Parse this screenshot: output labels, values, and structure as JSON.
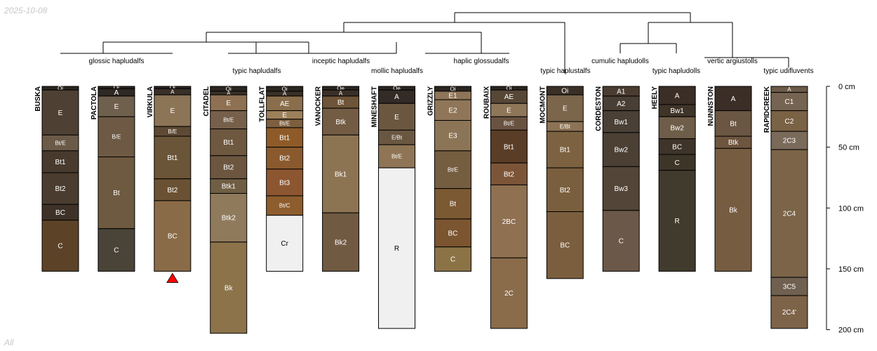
{
  "header": {
    "date": "2025-10-08"
  },
  "footer": {
    "label": "All"
  },
  "depth_axis": {
    "unit": "cm",
    "max_depth": 200,
    "ticks": [
      {
        "value": 0,
        "label": "0 cm"
      },
      {
        "value": 50,
        "label": "50 cm"
      },
      {
        "value": 100,
        "label": "100 cm"
      },
      {
        "value": 150,
        "label": "150 cm"
      },
      {
        "value": 200,
        "label": "200 cm"
      }
    ]
  },
  "taxa_labels": [
    "glossic hapludalfs",
    "typic hapludalfs",
    "inceptic hapludalfs",
    "mollic hapludalfs",
    "haplic glossudalfs",
    "typic haplustalfs",
    "cumulic hapludolls",
    "typic hapludolls",
    "vertic argiustolls",
    "typic udifluvents"
  ],
  "profiles": [
    {
      "name": "BUSKA",
      "horizons": [
        {
          "name": "Oi",
          "top": 0,
          "bottom": 3,
          "color": "#2b2520"
        },
        {
          "name": "E",
          "top": 3,
          "bottom": 40,
          "color": "#4e4133"
        },
        {
          "name": "Bt/E",
          "top": 40,
          "bottom": 53,
          "color": "#6b5a48"
        },
        {
          "name": "Bt1",
          "top": 53,
          "bottom": 71,
          "color": "#483a2d"
        },
        {
          "name": "Bt2",
          "top": 71,
          "bottom": 97,
          "color": "#4a3d2f"
        },
        {
          "name": "BC",
          "top": 97,
          "bottom": 110,
          "color": "#3e3228"
        },
        {
          "name": "C",
          "top": 110,
          "bottom": 152,
          "color": "#5c4328"
        }
      ]
    },
    {
      "name": "PACTOLA",
      "horizons": [
        {
          "name": "Oi",
          "top": 0,
          "bottom": 2,
          "color": "#2b2520"
        },
        {
          "name": "A",
          "top": 2,
          "bottom": 8,
          "color": "#2f2823"
        },
        {
          "name": "E",
          "top": 8,
          "bottom": 25,
          "color": "#6f5f4d"
        },
        {
          "name": "B/E",
          "top": 25,
          "bottom": 58,
          "color": "#6e5a44"
        },
        {
          "name": "Bt",
          "top": 58,
          "bottom": 117,
          "color": "#6e5a40"
        },
        {
          "name": "C",
          "top": 117,
          "bottom": 152,
          "color": "#4a4338"
        }
      ]
    },
    {
      "name": "VIRKULA",
      "marker": "yes",
      "horizons": [
        {
          "name": "Oi",
          "top": 0,
          "bottom": 2,
          "color": "#2b2520"
        },
        {
          "name": "A",
          "top": 2,
          "bottom": 7,
          "color": "#3a3028"
        },
        {
          "name": "E",
          "top": 7,
          "bottom": 33,
          "color": "#8c7457"
        },
        {
          "name": "B/E",
          "top": 33,
          "bottom": 41,
          "color": "#5e4a34"
        },
        {
          "name": "Bt1",
          "top": 41,
          "bottom": 76,
          "color": "#6b5538"
        },
        {
          "name": "Bt2",
          "top": 76,
          "bottom": 94,
          "color": "#6a5133"
        },
        {
          "name": "BC",
          "top": 94,
          "bottom": 152,
          "color": "#8a6b47"
        }
      ]
    },
    {
      "name": "CITADEL",
      "horizons": [
        {
          "name": "Oi",
          "top": 0,
          "bottom": 4,
          "color": "#2b2520"
        },
        {
          "name": "A",
          "top": 4,
          "bottom": 7,
          "color": "#3a3028"
        },
        {
          "name": "E",
          "top": 7,
          "bottom": 20,
          "color": "#8e7152"
        },
        {
          "name": "Bt/E",
          "top": 20,
          "bottom": 35,
          "color": "#76604b"
        },
        {
          "name": "Bt1",
          "top": 35,
          "bottom": 57,
          "color": "#6e583f"
        },
        {
          "name": "Bt2",
          "top": 57,
          "bottom": 76,
          "color": "#6c5640"
        },
        {
          "name": "Btk1",
          "top": 76,
          "bottom": 88,
          "color": "#6f5e44"
        },
        {
          "name": "Btk2",
          "top": 88,
          "bottom": 128,
          "color": "#8f7a5c"
        },
        {
          "name": "Bk",
          "top": 128,
          "bottom": 203,
          "color": "#8c7349"
        }
      ]
    },
    {
      "name": "TOLLFLAT",
      "horizons": [
        {
          "name": "Oi",
          "top": 0,
          "bottom": 4,
          "color": "#2b2520"
        },
        {
          "name": "A",
          "top": 4,
          "bottom": 8,
          "color": "#3a3028"
        },
        {
          "name": "AE",
          "top": 8,
          "bottom": 20,
          "color": "#8a6e4c"
        },
        {
          "name": "E",
          "top": 20,
          "bottom": 27,
          "color": "#9e805a"
        },
        {
          "name": "Bt/E",
          "top": 27,
          "bottom": 34,
          "color": "#7d5f3f"
        },
        {
          "name": "Bt1",
          "top": 34,
          "bottom": 50,
          "color": "#8e5b28"
        },
        {
          "name": "Bt2",
          "top": 50,
          "bottom": 68,
          "color": "#8a5a2e"
        },
        {
          "name": "Bt3",
          "top": 68,
          "bottom": 90,
          "color": "#8c5631"
        },
        {
          "name": "Bt/C",
          "top": 90,
          "bottom": 106,
          "color": "#8e5d2e"
        },
        {
          "name": "Cr",
          "top": 106,
          "bottom": 152,
          "color": "#f0f0f0"
        }
      ]
    },
    {
      "name": "VANOCKER",
      "horizons": [
        {
          "name": "Oe",
          "top": 0,
          "bottom": 3,
          "color": "#2b2520"
        },
        {
          "name": "A",
          "top": 3,
          "bottom": 8,
          "color": "#3a3028"
        },
        {
          "name": "Bt",
          "top": 8,
          "bottom": 18,
          "color": "#6e5438"
        },
        {
          "name": "Btk",
          "top": 18,
          "bottom": 40,
          "color": "#735c44"
        },
        {
          "name": "Bk1",
          "top": 40,
          "bottom": 104,
          "color": "#8c7453"
        },
        {
          "name": "Bk2",
          "top": 104,
          "bottom": 152,
          "color": "#705a42"
        }
      ]
    },
    {
      "name": "MINESHAFT",
      "horizons": [
        {
          "name": "Oe",
          "top": 0,
          "bottom": 3,
          "color": "#2b2520"
        },
        {
          "name": "A",
          "top": 3,
          "bottom": 14,
          "color": "#332b25"
        },
        {
          "name": "E",
          "top": 14,
          "bottom": 36,
          "color": "#6b5740"
        },
        {
          "name": "E/Bt",
          "top": 36,
          "bottom": 48,
          "color": "#6a5742"
        },
        {
          "name": "Bt/E",
          "top": 48,
          "bottom": 67,
          "color": "#8f7555"
        },
        {
          "name": "R",
          "top": 67,
          "bottom": 199,
          "color": "#f0f0f0"
        }
      ]
    },
    {
      "name": "GRIZZLY",
      "horizons": [
        {
          "name": "Oi",
          "top": 0,
          "bottom": 4,
          "color": "#2b2520"
        },
        {
          "name": "E1",
          "top": 4,
          "bottom": 11,
          "color": "#8e7458"
        },
        {
          "name": "E2",
          "top": 11,
          "bottom": 28,
          "color": "#8f7659"
        },
        {
          "name": "E3",
          "top": 28,
          "bottom": 53,
          "color": "#8c7556"
        },
        {
          "name": "Bt/E",
          "top": 53,
          "bottom": 84,
          "color": "#755d40"
        },
        {
          "name": "Bt",
          "top": 84,
          "bottom": 109,
          "color": "#7b5933"
        },
        {
          "name": "BC",
          "top": 109,
          "bottom": 132,
          "color": "#7b5530"
        },
        {
          "name": "C",
          "top": 132,
          "bottom": 152,
          "color": "#8b7346"
        }
      ]
    },
    {
      "name": "ROUBAIX",
      "horizons": [
        {
          "name": "Oi",
          "top": 0,
          "bottom": 3,
          "color": "#2b2520"
        },
        {
          "name": "AE",
          "top": 3,
          "bottom": 14,
          "color": "#574737"
        },
        {
          "name": "E",
          "top": 14,
          "bottom": 25,
          "color": "#8e7659"
        },
        {
          "name": "Bt/E",
          "top": 25,
          "bottom": 36,
          "color": "#6a5241"
        },
        {
          "name": "Bt1",
          "top": 36,
          "bottom": 63,
          "color": "#5a3d26"
        },
        {
          "name": "Bt2",
          "top": 63,
          "bottom": 81,
          "color": "#7c5538"
        },
        {
          "name": "2BC",
          "top": 81,
          "bottom": 141,
          "color": "#8f7051"
        },
        {
          "name": "2C",
          "top": 141,
          "bottom": 199,
          "color": "#8a6c4b"
        }
      ]
    },
    {
      "name": "MOCMONT",
      "horizons": [
        {
          "name": "Oi",
          "top": 0,
          "bottom": 7,
          "color": "#3a3028"
        },
        {
          "name": "E",
          "top": 7,
          "bottom": 29,
          "color": "#7b654b"
        },
        {
          "name": "E/Bt",
          "top": 29,
          "bottom": 37,
          "color": "#8c7354"
        },
        {
          "name": "Bt1",
          "top": 37,
          "bottom": 67,
          "color": "#7c6241"
        },
        {
          "name": "Bt2",
          "top": 67,
          "bottom": 103,
          "color": "#7a5f3e"
        },
        {
          "name": "BC",
          "top": 103,
          "bottom": 158,
          "color": "#7a5e3d"
        }
      ]
    },
    {
      "name": "CORDESTON",
      "horizons": [
        {
          "name": "A1",
          "top": 0,
          "bottom": 8,
          "color": "#4b3c31"
        },
        {
          "name": "A2",
          "top": 8,
          "bottom": 20,
          "color": "#4a3f35"
        },
        {
          "name": "Bw1",
          "top": 20,
          "bottom": 38,
          "color": "#4a4036"
        },
        {
          "name": "Bw2",
          "top": 38,
          "bottom": 66,
          "color": "#4c4035"
        },
        {
          "name": "Bw3",
          "top": 66,
          "bottom": 102,
          "color": "#534537"
        },
        {
          "name": "C",
          "top": 102,
          "bottom": 152,
          "color": "#6b5848"
        }
      ]
    },
    {
      "name": "HEELY",
      "horizons": [
        {
          "name": "A",
          "top": 0,
          "bottom": 15,
          "color": "#3a2e26"
        },
        {
          "name": "Bw1",
          "top": 15,
          "bottom": 25,
          "color": "#3f3428"
        },
        {
          "name": "Bw2",
          "top": 25,
          "bottom": 43,
          "color": "#6e5d48"
        },
        {
          "name": "BC",
          "top": 43,
          "bottom": 56,
          "color": "#3e3429"
        },
        {
          "name": "C",
          "top": 56,
          "bottom": 69,
          "color": "#3e3529"
        },
        {
          "name": "R",
          "top": 69,
          "bottom": 152,
          "color": "#413b2d"
        }
      ]
    },
    {
      "name": "NUNNSTON",
      "horizons": [
        {
          "name": "A",
          "top": 0,
          "bottom": 20,
          "color": "#3b2e26"
        },
        {
          "name": "Bt",
          "top": 20,
          "bottom": 41,
          "color": "#6a5642"
        },
        {
          "name": "Btk",
          "top": 41,
          "bottom": 51,
          "color": "#6e5540"
        },
        {
          "name": "Bk",
          "top": 51,
          "bottom": 152,
          "color": "#765d42"
        }
      ]
    },
    {
      "name": "RAPIDCREEK",
      "horizons": [
        {
          "name": "A",
          "top": 0,
          "bottom": 5,
          "color": "#6b5a48"
        },
        {
          "name": "C1",
          "top": 5,
          "bottom": 20,
          "color": "#756451"
        },
        {
          "name": "C2",
          "top": 20,
          "bottom": 37,
          "color": "#7a6245"
        },
        {
          "name": "2C3",
          "top": 37,
          "bottom": 52,
          "color": "#7a6a5a"
        },
        {
          "name": "2C4",
          "top": 52,
          "bottom": 157,
          "color": "#7b6447"
        },
        {
          "name": "3C5",
          "top": 157,
          "bottom": 172,
          "color": "#6f6050"
        },
        {
          "name": "2C4'",
          "top": 172,
          "bottom": 199,
          "color": "#7d6449"
        }
      ]
    }
  ]
}
